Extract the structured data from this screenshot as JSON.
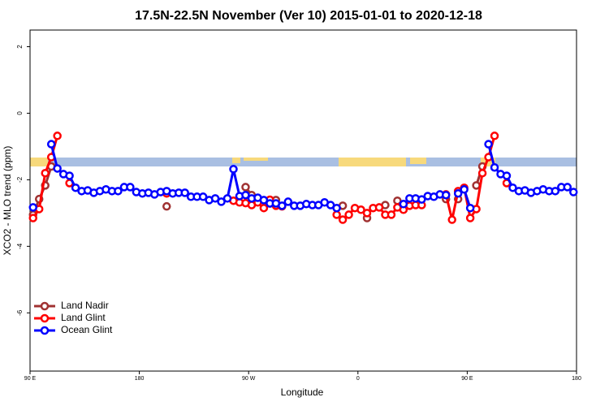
{
  "chart_data": {
    "type": "line",
    "title": "17.5N-22.5N November (Ver 10)   2015-01-01 to 2020-12-18",
    "x_label": "Longitude",
    "y_label": "XCO2 - MLO trend (ppm)",
    "x": [
      92.5,
      97.5,
      102.5,
      107.5,
      112.5,
      117.5,
      122.5,
      127.5,
      132.5,
      137.5,
      142.5,
      147.5,
      152.5,
      157.5,
      162.5,
      167.5,
      172.5,
      177.5,
      182.5,
      187.5,
      192.5,
      197.5,
      202.5,
      207.5,
      212.5,
      217.5,
      222.5,
      227.5,
      232.5,
      237.5,
      242.5,
      247.5,
      252.5,
      257.5,
      262.5,
      267.5,
      272.5,
      277.5,
      282.5,
      287.5,
      292.5,
      297.5,
      302.5,
      307.5,
      312.5,
      317.5,
      322.5,
      327.5,
      332.5,
      337.5,
      342.5,
      347.5,
      352.5,
      357.5,
      362.5,
      367.5,
      372.5,
      377.5,
      382.5,
      387.5,
      392.5,
      397.5,
      402.5,
      407.5,
      412.5,
      417.5,
      422.5,
      427.5,
      432.5,
      437.5,
      442.5,
      447.5,
      452.5,
      457.5,
      462.5,
      467.5,
      472.5,
      477.5,
      482.5,
      487.5,
      492.5,
      497.5,
      502.5,
      507.5,
      512.5,
      517.5,
      522.5,
      527.5,
      532.5,
      537.5
    ],
    "xlim": [
      90,
      540
    ],
    "xticks": [
      {
        "value": 90,
        "label": "90 E"
      },
      {
        "value": 180,
        "label": "180"
      },
      {
        "value": 270,
        "label": "90 W"
      },
      {
        "value": 360,
        "label": "0"
      },
      {
        "value": 450,
        "label": "90 E"
      },
      {
        "value": 540,
        "label": "180"
      }
    ],
    "ylim": [
      -7.75,
      2.5
    ],
    "yticks": [
      2,
      0,
      -2,
      -4,
      -6
    ],
    "legend": "bottom-left",
    "series": [
      {
        "name": "Land Nadir",
        "color": "#a03232",
        "values": [
          -3.05,
          -2.58,
          -2.17,
          -1.6,
          null,
          null,
          null,
          null,
          null,
          null,
          null,
          null,
          null,
          null,
          null,
          null,
          null,
          null,
          null,
          null,
          null,
          null,
          -2.8,
          null,
          null,
          null,
          null,
          null,
          null,
          null,
          null,
          null,
          null,
          null,
          null,
          -2.22,
          -2.46,
          -2.6,
          null,
          -2.71,
          -2.61,
          null,
          null,
          null,
          null,
          null,
          null,
          null,
          null,
          null,
          null,
          -2.78,
          null,
          null,
          null,
          -3.15,
          null,
          null,
          -2.76,
          null,
          -2.63,
          null,
          null,
          null,
          null,
          null,
          null,
          null,
          -2.58,
          null,
          -2.58,
          null,
          null,
          -2.17,
          -1.6,
          null,
          null,
          null,
          null,
          null,
          null,
          null,
          null,
          null,
          null,
          null,
          null,
          null,
          null,
          null
        ]
      },
      {
        "name": "Land Glint",
        "color": "#ff0000",
        "values": [
          -3.15,
          -2.88,
          -1.8,
          -1.32,
          -0.68,
          null,
          -2.1,
          null,
          null,
          null,
          null,
          null,
          null,
          null,
          null,
          null,
          null,
          null,
          null,
          null,
          null,
          null,
          -2.41,
          null,
          null,
          null,
          null,
          null,
          null,
          null,
          null,
          null,
          null,
          -2.63,
          -2.68,
          -2.7,
          -2.76,
          -2.68,
          -2.85,
          -2.6,
          -2.78,
          -2.8,
          null,
          null,
          null,
          null,
          null,
          null,
          null,
          null,
          -3.05,
          -3.2,
          -3.05,
          -2.85,
          -2.9,
          -3.0,
          -2.85,
          -2.83,
          -3.05,
          -3.05,
          -2.83,
          -2.9,
          -2.78,
          -2.76,
          -2.76,
          null,
          null,
          null,
          -2.44,
          -3.2,
          -2.34,
          -2.24,
          -3.15,
          -2.88,
          -1.8,
          -1.32,
          -0.68,
          null,
          -2.1,
          null,
          null,
          null,
          null,
          null,
          null,
          null,
          null,
          null,
          null,
          null
        ]
      },
      {
        "name": "Ocean Glint",
        "color": "#0000ff",
        "values": [
          -2.83,
          null,
          null,
          -0.93,
          -1.66,
          -1.83,
          -1.88,
          -2.24,
          -2.34,
          -2.32,
          -2.39,
          -2.34,
          -2.29,
          -2.34,
          -2.34,
          -2.22,
          -2.22,
          -2.37,
          -2.41,
          -2.39,
          -2.44,
          -2.37,
          -2.34,
          -2.41,
          -2.39,
          -2.39,
          -2.51,
          -2.51,
          -2.51,
          -2.61,
          -2.56,
          -2.66,
          -2.56,
          -1.68,
          -2.49,
          -2.46,
          -2.56,
          -2.54,
          -2.61,
          -2.71,
          -2.71,
          -2.78,
          -2.66,
          -2.78,
          -2.78,
          -2.73,
          -2.76,
          -2.76,
          -2.68,
          -2.76,
          -2.85,
          null,
          null,
          null,
          null,
          null,
          null,
          null,
          null,
          null,
          null,
          -2.73,
          -2.56,
          -2.56,
          -2.59,
          -2.49,
          -2.51,
          -2.44,
          -2.46,
          null,
          -2.41,
          -2.29,
          -2.85,
          null,
          null,
          -0.93,
          -1.63,
          -1.83,
          -1.88,
          -2.24,
          -2.34,
          -2.32,
          -2.39,
          -2.34,
          -2.29,
          -2.34,
          -2.34,
          -2.22,
          -2.22,
          -2.37
        ]
      }
    ]
  }
}
